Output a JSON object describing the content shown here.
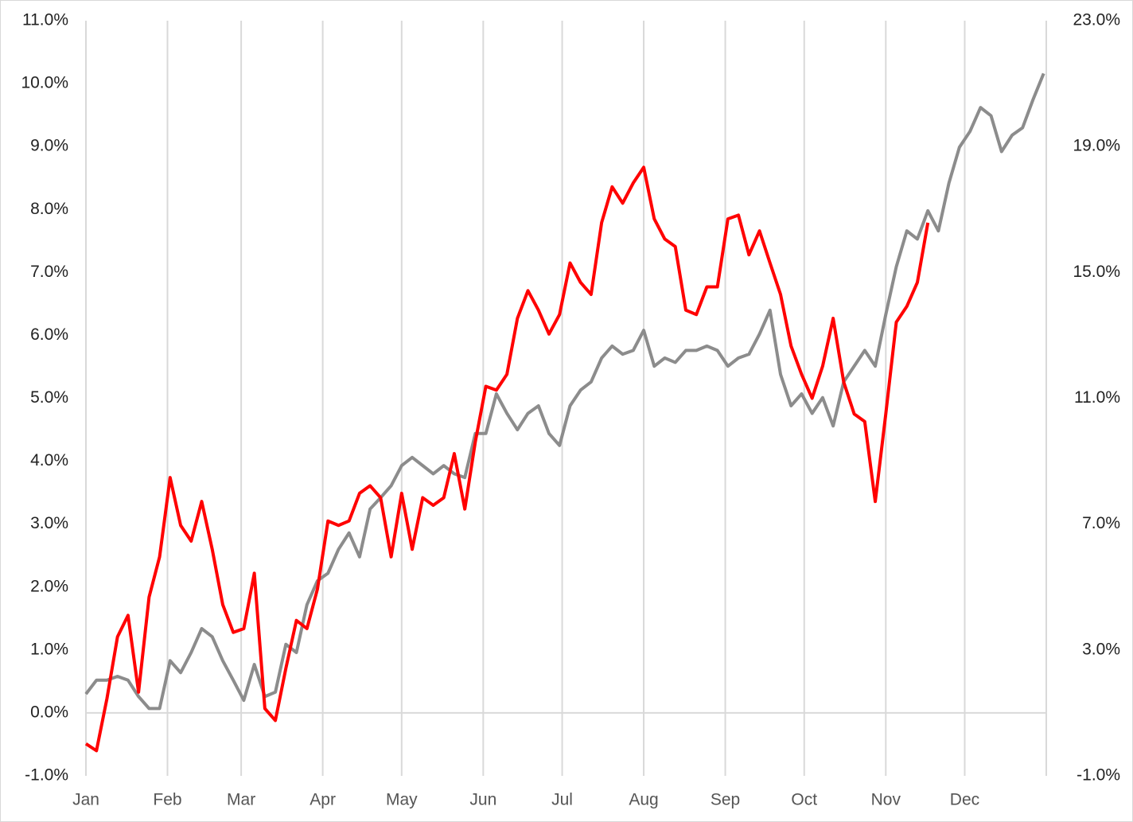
{
  "chart_data": {
    "type": "line",
    "x": [
      0,
      4,
      8,
      12,
      16,
      20,
      24,
      28,
      32,
      36,
      40,
      44,
      48,
      52,
      56,
      60,
      64,
      68,
      72,
      76,
      80,
      84,
      88,
      92,
      96,
      100,
      104,
      108,
      112,
      116,
      120,
      124,
      128,
      132,
      136,
      140,
      144,
      148,
      152,
      156,
      160,
      164,
      168,
      172,
      176,
      180,
      184,
      188,
      192,
      196,
      200,
      204,
      208,
      212,
      216,
      220,
      224,
      228,
      232,
      236,
      240,
      244,
      248,
      252,
      256,
      260,
      264,
      268,
      272,
      276,
      280,
      284,
      288,
      292,
      296,
      300,
      304,
      308,
      312,
      316,
      320,
      324,
      328,
      332,
      336,
      340,
      344,
      348,
      352,
      356,
      360,
      364
    ],
    "xlim": [
      0,
      365
    ],
    "xticks": [
      {
        "value": 0,
        "label": "Jan"
      },
      {
        "value": 31,
        "label": "Feb"
      },
      {
        "value": 59,
        "label": "Mar"
      },
      {
        "value": 90,
        "label": "Apr"
      },
      {
        "value": 120,
        "label": "May"
      },
      {
        "value": 151,
        "label": "Jun"
      },
      {
        "value": 181,
        "label": "Jul"
      },
      {
        "value": 212,
        "label": "Aug"
      },
      {
        "value": 243,
        "label": "Sep"
      },
      {
        "value": 273,
        "label": "Oct"
      },
      {
        "value": 304,
        "label": "Nov"
      },
      {
        "value": 334,
        "label": "Dec"
      }
    ],
    "ylim": [
      -1,
      11
    ],
    "yticks": [
      {
        "value": -1,
        "label": "-1.0%"
      },
      {
        "value": 0,
        "label": "0.0%"
      },
      {
        "value": 1,
        "label": "1.0%"
      },
      {
        "value": 2,
        "label": "2.0%"
      },
      {
        "value": 3,
        "label": "3.0%"
      },
      {
        "value": 4,
        "label": "4.0%"
      },
      {
        "value": 5,
        "label": "5.0%"
      },
      {
        "value": 6,
        "label": "6.0%"
      },
      {
        "value": 7,
        "label": "7.0%"
      },
      {
        "value": 8,
        "label": "8.0%"
      },
      {
        "value": 9,
        "label": "9.0%"
      },
      {
        "value": 10,
        "label": "10.0%"
      },
      {
        "value": 11,
        "label": "11.0%"
      }
    ],
    "y2lim": [
      -1,
      23
    ],
    "y2ticks": [
      {
        "value": -1,
        "label": "-1.0%"
      },
      {
        "value": 3,
        "label": "3.0%"
      },
      {
        "value": 7,
        "label": "7.0%"
      },
      {
        "value": 11,
        "label": "11.0%"
      },
      {
        "value": 15,
        "label": "15.0%"
      },
      {
        "value": 19,
        "label": "19.0%"
      },
      {
        "value": 23,
        "label": "23.0%"
      }
    ],
    "grid": true,
    "series": [
      {
        "color": "#ff0000",
        "axis": "y",
        "values": [
          -0.49,
          -0.6,
          0.23,
          1.21,
          1.55,
          0.33,
          1.84,
          2.48,
          3.74,
          2.98,
          2.73,
          3.36,
          2.6,
          1.72,
          1.28,
          1.34,
          2.22,
          0.07,
          -0.12,
          0.71,
          1.47,
          1.34,
          1.97,
          3.05,
          2.98,
          3.05,
          3.49,
          3.61,
          3.42,
          2.48,
          3.49,
          2.6,
          3.42,
          3.3,
          3.42,
          4.12,
          3.24,
          4.31,
          5.19,
          5.13,
          5.38,
          6.27,
          6.71,
          6.4,
          6.02,
          6.33,
          7.15,
          6.84,
          6.65,
          7.79,
          8.36,
          8.1,
          8.42,
          8.67,
          7.85,
          7.53,
          7.41,
          6.4,
          6.33,
          6.77,
          6.77,
          7.85,
          7.91,
          7.28,
          7.66,
          7.15,
          6.65,
          5.83,
          5.38,
          5.0,
          5.51,
          6.27,
          5.26,
          4.75,
          4.63,
          3.36,
          4.75,
          6.21,
          6.46,
          6.84,
          7.79,
          null,
          null,
          null,
          null,
          null,
          null,
          null,
          null,
          null,
          null,
          null
        ]
      },
      {
        "color": "#8c8c8c",
        "axis": "y2",
        "values": [
          1.6,
          2.04,
          2.04,
          2.16,
          2.04,
          1.52,
          1.14,
          1.14,
          2.66,
          2.28,
          2.92,
          3.68,
          3.42,
          2.66,
          2.04,
          1.4,
          2.54,
          1.52,
          1.66,
          3.18,
          2.92,
          4.44,
          5.2,
          5.44,
          6.2,
          6.72,
          5.96,
          7.48,
          7.84,
          8.22,
          8.86,
          9.12,
          8.86,
          8.6,
          8.86,
          8.6,
          8.48,
          9.88,
          9.88,
          11.14,
          10.52,
          10.0,
          10.52,
          10.76,
          9.88,
          9.5,
          10.76,
          11.26,
          11.52,
          12.28,
          12.66,
          12.4,
          12.52,
          13.16,
          12.02,
          12.28,
          12.14,
          12.52,
          12.52,
          12.66,
          12.52,
          12.02,
          12.28,
          12.4,
          13.04,
          13.8,
          11.76,
          10.76,
          11.14,
          10.52,
          11.02,
          10.12,
          11.52,
          12.02,
          12.52,
          12.02,
          13.66,
          15.18,
          16.32,
          16.06,
          16.96,
          16.32,
          17.84,
          18.98,
          19.48,
          20.24,
          19.98,
          18.84,
          19.36,
          19.6,
          20.5,
          21.32
        ]
      }
    ]
  }
}
